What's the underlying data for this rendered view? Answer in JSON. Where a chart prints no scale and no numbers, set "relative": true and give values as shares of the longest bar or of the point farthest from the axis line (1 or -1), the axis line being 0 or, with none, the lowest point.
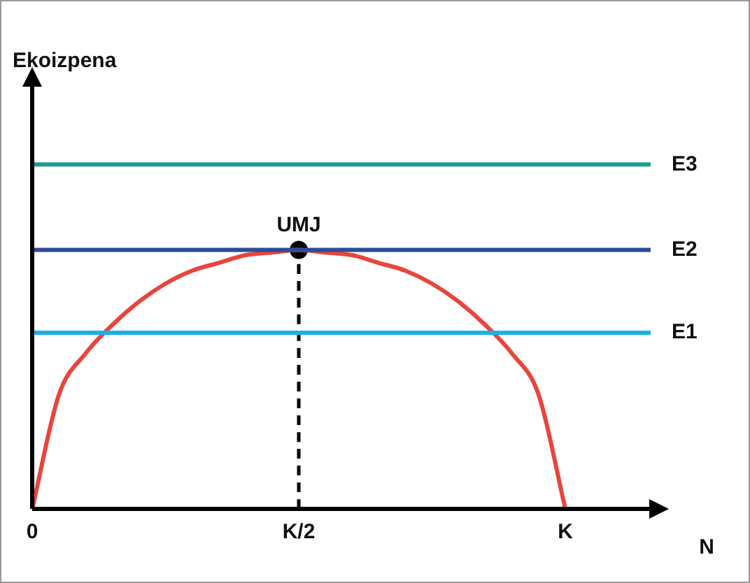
{
  "chart_data": {
    "type": "line",
    "relative": true,
    "xlabel": "N",
    "categories": [
      "0",
      null,
      null,
      null,
      null,
      null,
      null,
      null,
      null,
      null,
      "K/2",
      null,
      null,
      null,
      null,
      null,
      null,
      null,
      null,
      null,
      "K",
      null,
      null,
      null
    ],
    "grid": false,
    "legend": false,
    "series": [
      {
        "type": "line",
        "color": "#e8453c",
        "marker": "none",
        "line_style": "solid",
        "values": [
          0,
          0.44,
          0.6,
          0.71,
          0.8,
          0.87,
          0.92,
          0.95,
          0.98,
          0.99,
          1,
          0.99,
          0.98,
          0.95,
          0.92,
          0.87,
          0.8,
          0.71,
          0.6,
          0.44,
          0,
          null,
          null,
          null
        ]
      },
      {
        "type": "line",
        "color": "#000000",
        "marker": "none",
        "line_style": "dashed",
        "x": [
          "K/2",
          "K/2"
        ],
        "values": [
          0,
          1
        ]
      },
      {
        "type": "scatter",
        "color": "#000000",
        "marker": "circle",
        "x": [
          "K/2"
        ],
        "values": [
          1
        ]
      }
    ],
    "ref_lines": [
      {
        "axis": "y",
        "value": 1.33,
        "label": "E3",
        "color": "#1a9e8f"
      },
      {
        "axis": "y",
        "value": 1,
        "label": "E2",
        "color": "#2e4a9a"
      },
      {
        "axis": "y",
        "value": 0.68,
        "label": "E1",
        "color": "#1ab0e8"
      }
    ],
    "annotations": [
      "Ekoizpena",
      {
        "text": "UMJ",
        "x": "K/2",
        "y": 1
      }
    ]
  }
}
